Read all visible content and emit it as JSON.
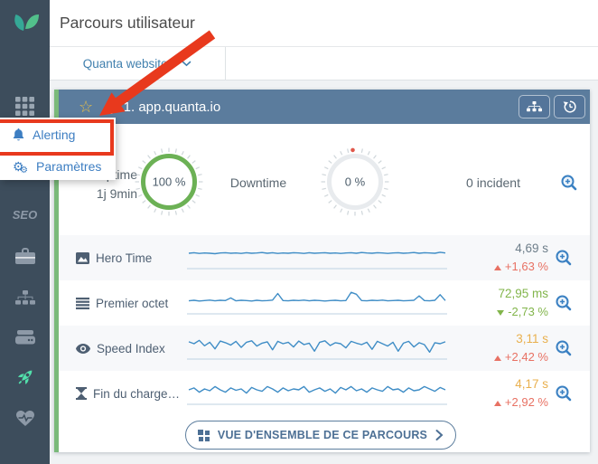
{
  "app": {
    "page_title": "Parcours utilisateur",
    "site_selector": "Quanta websites"
  },
  "sidebar": {
    "seo_label": "SEO",
    "icons": [
      "apps-grid-icon",
      "briefcase-icon",
      "sitemap-icon",
      "server-icon",
      "rocket-icon",
      "heart-pulse-icon"
    ]
  },
  "context_menu": {
    "items": [
      {
        "label": "Alerting",
        "icon": "bell-icon"
      },
      {
        "label": "Paramètres",
        "icon": "gears-icon"
      }
    ]
  },
  "card": {
    "title": "1. app.quanta.io",
    "uptime_label": "Uptime",
    "uptime_duration": "1j 9min",
    "uptime_value": "100 %",
    "downtime_label": "Downtime",
    "downtime_value": "0 %",
    "incidents": "0 incident",
    "overview_button": "VUE D'ENSEMBLE DE CE PARCOURS",
    "metrics": [
      {
        "label": "Hero Time",
        "icon": "image-icon",
        "value": "4,69 s",
        "value_color": "#6e7e8a",
        "change": "+1,63 %",
        "change_dir": "up",
        "change_color": "#e87163",
        "sparkline": [
          0.46,
          0.44,
          0.47,
          0.45,
          0.46,
          0.48,
          0.45,
          0.44,
          0.46,
          0.45,
          0.47,
          0.44,
          0.46,
          0.45,
          0.43,
          0.46,
          0.44,
          0.47,
          0.45,
          0.46,
          0.44,
          0.45,
          0.47,
          0.44,
          0.46,
          0.45,
          0.44,
          0.46,
          0.45,
          0.47,
          0.45,
          0.44,
          0.46,
          0.43,
          0.45,
          0.46,
          0.44,
          0.45,
          0.47,
          0.45,
          0.44,
          0.46,
          0.45,
          0.43,
          0.46,
          0.44,
          0.45,
          0.46,
          0.42,
          0.45
        ]
      },
      {
        "label": "Premier octet",
        "icon": "lines-icon",
        "value": "72,95 ms",
        "value_color": "#82b54b",
        "change": "-2,73 %",
        "change_dir": "down",
        "change_color": "#82b54b",
        "sparkline": [
          0.56,
          0.54,
          0.57,
          0.55,
          0.53,
          0.56,
          0.54,
          0.55,
          0.44,
          0.56,
          0.54,
          0.55,
          0.57,
          0.54,
          0.56,
          0.55,
          0.53,
          0.25,
          0.55,
          0.56,
          0.54,
          0.55,
          0.53,
          0.56,
          0.54,
          0.55,
          0.57,
          0.55,
          0.54,
          0.56,
          0.55,
          0.2,
          0.28,
          0.55,
          0.56,
          0.54,
          0.55,
          0.53,
          0.56,
          0.55,
          0.54,
          0.56,
          0.55,
          0.54,
          0.35,
          0.55,
          0.56,
          0.54,
          0.3,
          0.55
        ]
      },
      {
        "label": "Speed Index",
        "icon": "eye-icon",
        "value": "3,11 s",
        "value_color": "#e9b04e",
        "change": "+2,42 %",
        "change_dir": "up",
        "change_color": "#e87163",
        "sparkline": [
          0.38,
          0.46,
          0.32,
          0.55,
          0.4,
          0.68,
          0.35,
          0.42,
          0.52,
          0.36,
          0.62,
          0.4,
          0.34,
          0.56,
          0.44,
          0.38,
          0.72,
          0.36,
          0.46,
          0.4,
          0.6,
          0.35,
          0.5,
          0.44,
          0.78,
          0.4,
          0.34,
          0.54,
          0.42,
          0.46,
          0.64,
          0.36,
          0.44,
          0.5,
          0.4,
          0.7,
          0.36,
          0.46,
          0.56,
          0.4,
          0.78,
          0.44,
          0.36,
          0.6,
          0.42,
          0.5,
          0.82,
          0.42,
          0.46,
          0.38
        ]
      },
      {
        "label": "Fin du charge…",
        "icon": "hourglass-icon",
        "value": "4,17 s",
        "value_color": "#e9b04e",
        "change": "+2,92 %",
        "change_dir": "up",
        "change_color": "#e87163",
        "sparkline": [
          0.5,
          0.42,
          0.6,
          0.46,
          0.54,
          0.36,
          0.5,
          0.6,
          0.42,
          0.52,
          0.46,
          0.64,
          0.4,
          0.5,
          0.56,
          0.36,
          0.46,
          0.6,
          0.42,
          0.54,
          0.46,
          0.5,
          0.36,
          0.6,
          0.5,
          0.42,
          0.56,
          0.46,
          0.64,
          0.4,
          0.5,
          0.36,
          0.54,
          0.46,
          0.6,
          0.42,
          0.5,
          0.56,
          0.36,
          0.5,
          0.46,
          0.6,
          0.42,
          0.54,
          0.5,
          0.36,
          0.46,
          0.56,
          0.4,
          0.5
        ]
      }
    ]
  },
  "colors": {
    "sidebar": "#3d4d5c",
    "card_header": "#5b7c9d",
    "card_green_border": "#7aba7a",
    "gauge_green": "#6cb155",
    "sparkline_blue": "#3f8dc6",
    "link_blue": "#3d7ec2",
    "annotation_red": "#e8391d",
    "warning_orange": "#e9b04e",
    "danger_red": "#e87163",
    "success_green": "#82b54b"
  }
}
